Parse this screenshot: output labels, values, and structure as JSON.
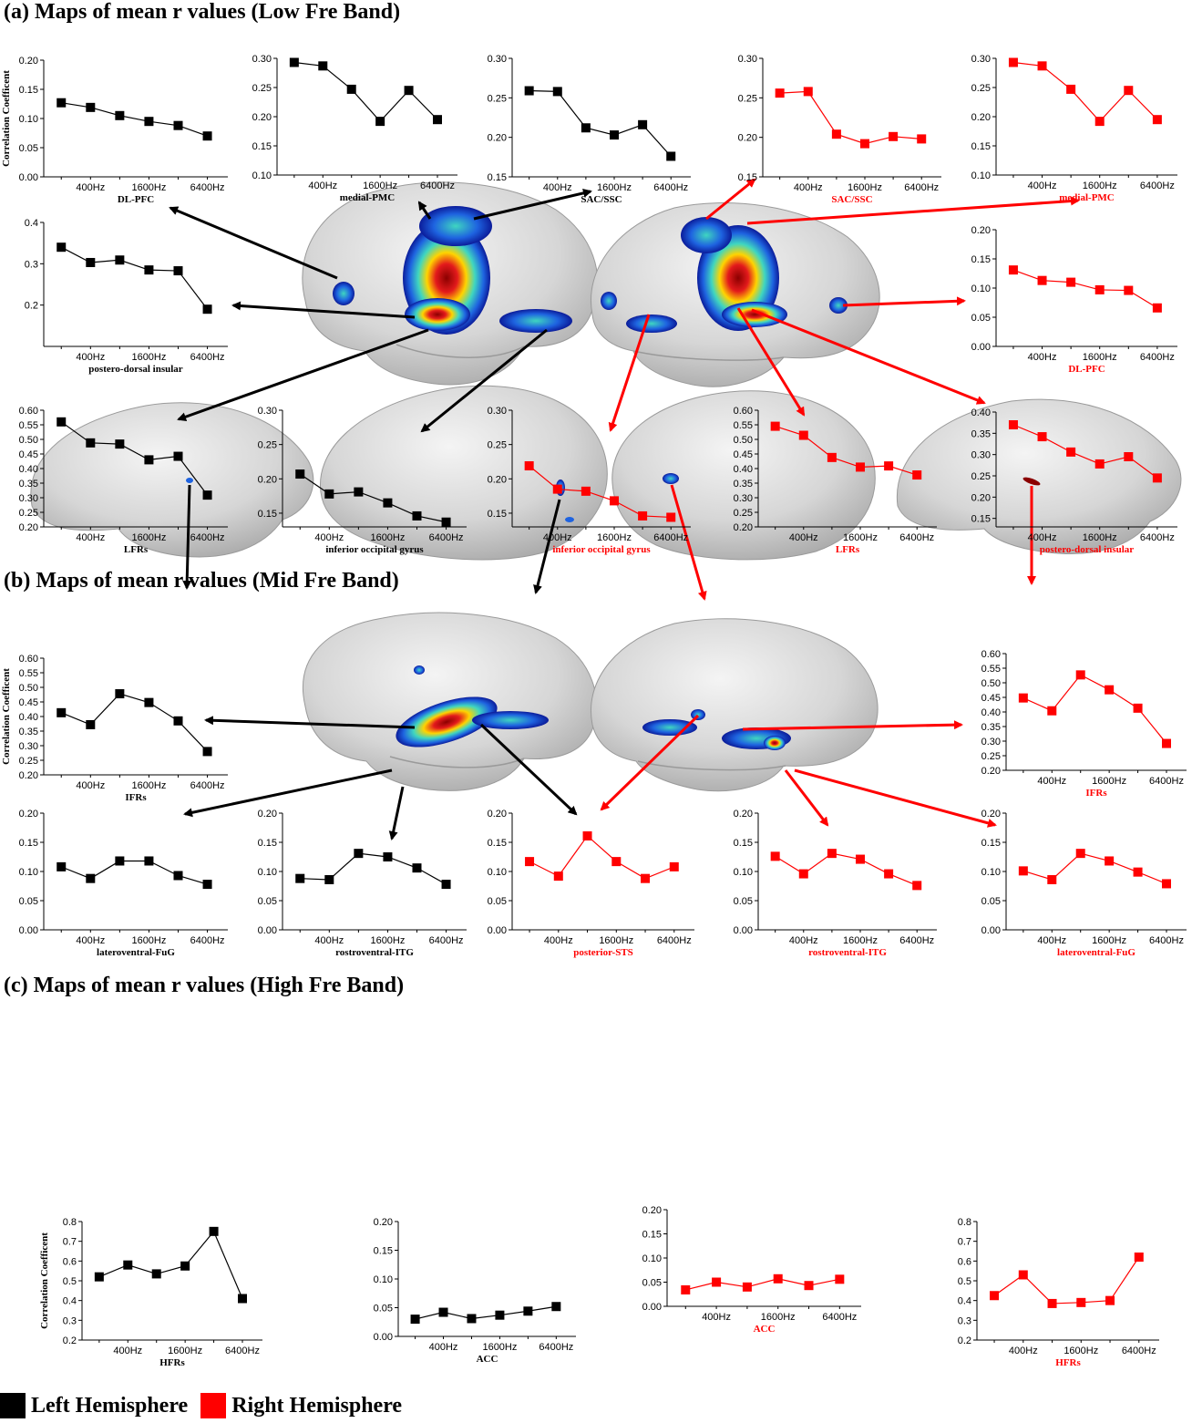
{
  "sections": {
    "a": "(a)  Maps of mean r values (Low Fre Band)",
    "b": "(b)  Maps of mean r values (Mid Fre Band)",
    "c": "(c)  Maps of mean r values (High Fre Band)"
  },
  "legend": {
    "left": "Left Hemisphere",
    "right": "Right Hemisphere",
    "left_color": "#000000",
    "right_color": "#ff0000"
  },
  "colors": {
    "left": "#000000",
    "right": "#ff0000"
  },
  "chart_data": [
    {
      "id": "a-l-dlpfc",
      "type": "line",
      "hemisphere": "left",
      "title": "DL-PFC",
      "ylabel": "Correlation Coefficent",
      "ylim": [
        0,
        0.2
      ],
      "yticks": [
        "0.00",
        "0.05",
        "0.10",
        "0.15",
        "0.20"
      ],
      "xticks": [
        "400Hz",
        "1600Hz",
        "6400Hz"
      ],
      "values": [
        0.127,
        0.119,
        0.105,
        0.095,
        0.088,
        0.07
      ]
    },
    {
      "id": "a-l-mpmc",
      "type": "line",
      "hemisphere": "left",
      "title": "medial-PMC",
      "ylabel": "",
      "ylim": [
        0.1,
        0.3
      ],
      "yticks": [
        "0.10",
        "0.15",
        "0.20",
        "0.25",
        "0.30"
      ],
      "xticks": [
        "400Hz",
        "1600Hz",
        "6400Hz"
      ],
      "values": [
        0.293,
        0.287,
        0.247,
        0.192,
        0.245,
        0.195
      ]
    },
    {
      "id": "a-l-sac",
      "type": "line",
      "hemisphere": "left",
      "title": "SAC/SSC",
      "ylabel": "",
      "ylim": [
        0.15,
        0.3
      ],
      "yticks": [
        "0.15",
        "0.20",
        "0.25",
        "0.30"
      ],
      "xticks": [
        "400Hz",
        "1600Hz",
        "6400Hz"
      ],
      "values": [
        0.259,
        0.258,
        0.212,
        0.203,
        0.216,
        0.176
      ]
    },
    {
      "id": "a-r-sac",
      "type": "line",
      "hemisphere": "right",
      "title": "SAC/SSC",
      "ylabel": "",
      "ylim": [
        0.15,
        0.3
      ],
      "yticks": [
        "0.15",
        "0.20",
        "0.25",
        "0.30"
      ],
      "xticks": [
        "400Hz",
        "1600Hz",
        "6400Hz"
      ],
      "values": [
        0.256,
        0.258,
        0.204,
        0.192,
        0.201,
        0.198
      ]
    },
    {
      "id": "a-r-mpmc",
      "type": "line",
      "hemisphere": "right",
      "title": "medial-PMC",
      "ylabel": "",
      "ylim": [
        0.1,
        0.3
      ],
      "yticks": [
        "0.10",
        "0.15",
        "0.20",
        "0.25",
        "0.30"
      ],
      "xticks": [
        "400Hz",
        "1600Hz",
        "6400Hz"
      ],
      "values": [
        0.293,
        0.287,
        0.247,
        0.192,
        0.245,
        0.195
      ]
    },
    {
      "id": "a-l-pdi",
      "type": "line",
      "hemisphere": "left",
      "title": "postero-dorsal insular",
      "ylabel": "",
      "ylim": [
        0.1,
        0.4
      ],
      "yticks": [
        "0.2",
        "0.3",
        "0.4"
      ],
      "xticks": [
        "400Hz",
        "1600Hz",
        "6400Hz"
      ],
      "values": [
        0.34,
        0.303,
        0.309,
        0.285,
        0.283,
        0.19
      ]
    },
    {
      "id": "a-r-dlpfc",
      "type": "line",
      "hemisphere": "right",
      "title": "DL-PFC",
      "ylabel": "",
      "ylim": [
        0,
        0.2
      ],
      "yticks": [
        "0.00",
        "0.05",
        "0.10",
        "0.15",
        "0.20"
      ],
      "xticks": [
        "400Hz",
        "1600Hz",
        "6400Hz"
      ],
      "values": [
        0.131,
        0.113,
        0.11,
        0.097,
        0.096,
        0.066
      ]
    },
    {
      "id": "a-l-lfrs",
      "type": "line",
      "hemisphere": "left",
      "title": "LFRs",
      "ylabel": "",
      "ylim": [
        0.2,
        0.6
      ],
      "yticks": [
        "0.20",
        "0.25",
        "0.30",
        "0.35",
        "0.40",
        "0.45",
        "0.50",
        "0.55",
        "0.60"
      ],
      "xticks": [
        "400Hz",
        "1600Hz",
        "6400Hz"
      ],
      "values": [
        0.56,
        0.488,
        0.484,
        0.43,
        0.442,
        0.309
      ]
    },
    {
      "id": "a-l-iog",
      "type": "line",
      "hemisphere": "left",
      "title": "inferior occipital gyrus",
      "ylabel": "",
      "ylim": [
        0.13,
        0.3
      ],
      "yticks": [
        "0.15",
        "0.20",
        "0.25",
        "0.30"
      ],
      "xticks": [
        "400Hz",
        "1600Hz",
        "6400Hz"
      ],
      "values": [
        0.207,
        0.178,
        0.181,
        0.165,
        0.146,
        0.137
      ]
    },
    {
      "id": "a-r-iog",
      "type": "line",
      "hemisphere": "right",
      "title": "inferior occipital gyrus",
      "ylabel": "",
      "ylim": [
        0.13,
        0.3
      ],
      "yticks": [
        "0.15",
        "0.20",
        "0.25",
        "0.30"
      ],
      "xticks": [
        "400Hz",
        "1600Hz",
        "6400Hz"
      ],
      "values": [
        0.219,
        0.185,
        0.182,
        0.168,
        0.146,
        0.144
      ]
    },
    {
      "id": "a-r-lfrs",
      "type": "line",
      "hemisphere": "right",
      "title": "LFRs",
      "ylabel": "",
      "ylim": [
        0.2,
        0.6
      ],
      "yticks": [
        "0.20",
        "0.25",
        "0.30",
        "0.35",
        "0.40",
        "0.45",
        "0.50",
        "0.55",
        "0.60"
      ],
      "xticks": [
        "400Hz",
        "1600Hz",
        "6400Hz"
      ],
      "values": [
        0.545,
        0.514,
        0.438,
        0.405,
        0.409,
        0.378
      ]
    },
    {
      "id": "a-r-pdi",
      "type": "line",
      "hemisphere": "right",
      "title": "postero-dorsal insular",
      "ylabel": "",
      "ylim": [
        0.13,
        0.4
      ],
      "yticks": [
        "0.15",
        "0.20",
        "0.25",
        "0.30",
        "0.35",
        "0.40"
      ],
      "xticks": [
        "400Hz",
        "1600Hz",
        "6400Hz"
      ],
      "values": [
        0.37,
        0.342,
        0.306,
        0.278,
        0.295,
        0.245
      ]
    },
    {
      "id": "b-l-ifrs",
      "type": "line",
      "hemisphere": "left",
      "title": "IFRs",
      "ylabel": "Correlation Coefficent",
      "ylim": [
        0.2,
        0.6
      ],
      "yticks": [
        "0.20",
        "0.25",
        "0.30",
        "0.35",
        "0.40",
        "0.45",
        "0.50",
        "0.55",
        "0.60"
      ],
      "xticks": [
        "400Hz",
        "1600Hz",
        "6400Hz"
      ],
      "values": [
        0.413,
        0.372,
        0.478,
        0.448,
        0.385,
        0.28
      ]
    },
    {
      "id": "b-r-ifrs",
      "type": "line",
      "hemisphere": "right",
      "title": "IFRs",
      "ylabel": "",
      "ylim": [
        0.2,
        0.6
      ],
      "yticks": [
        "0.20",
        "0.25",
        "0.30",
        "0.35",
        "0.40",
        "0.45",
        "0.50",
        "0.55",
        "0.60"
      ],
      "xticks": [
        "400Hz",
        "1600Hz",
        "6400Hz"
      ],
      "values": [
        0.448,
        0.404,
        0.527,
        0.476,
        0.413,
        0.292
      ]
    },
    {
      "id": "b-l-fug",
      "type": "line",
      "hemisphere": "left",
      "title": "lateroventral-FuG",
      "ylabel": "",
      "ylim": [
        0,
        0.2
      ],
      "yticks": [
        "0.00",
        "0.05",
        "0.10",
        "0.15",
        "0.20"
      ],
      "xticks": [
        "400Hz",
        "1600Hz",
        "6400Hz"
      ],
      "values": [
        0.108,
        0.088,
        0.118,
        0.118,
        0.093,
        0.078
      ]
    },
    {
      "id": "b-l-itg",
      "type": "line",
      "hemisphere": "left",
      "title": "rostroventral-ITG",
      "ylabel": "",
      "ylim": [
        0,
        0.2
      ],
      "yticks": [
        "0.00",
        "0.05",
        "0.10",
        "0.15",
        "0.20"
      ],
      "xticks": [
        "400Hz",
        "1600Hz",
        "6400Hz"
      ],
      "values": [
        0.088,
        0.086,
        0.131,
        0.125,
        0.106,
        0.078
      ]
    },
    {
      "id": "b-r-sts",
      "type": "line",
      "hemisphere": "right",
      "title": "posterior-STS",
      "ylabel": "",
      "ylim": [
        0,
        0.2
      ],
      "yticks": [
        "0.00",
        "0.05",
        "0.10",
        "0.15",
        "0.20"
      ],
      "xticks": [
        "400Hz",
        "1600Hz",
        "6400Hz"
      ],
      "values": [
        0.117,
        0.092,
        0.161,
        0.117,
        0.088,
        0.108
      ]
    },
    {
      "id": "b-r-itg",
      "type": "line",
      "hemisphere": "right",
      "title": "rostroventral-ITG",
      "ylabel": "",
      "ylim": [
        0,
        0.2
      ],
      "yticks": [
        "0.00",
        "0.05",
        "0.10",
        "0.15",
        "0.20"
      ],
      "xticks": [
        "400Hz",
        "1600Hz",
        "6400Hz"
      ],
      "values": [
        0.126,
        0.096,
        0.131,
        0.121,
        0.096,
        0.076
      ]
    },
    {
      "id": "b-r-fug",
      "type": "line",
      "hemisphere": "right",
      "title": "lateroventral-FuG",
      "ylabel": "",
      "ylim": [
        0,
        0.2
      ],
      "yticks": [
        "0.00",
        "0.05",
        "0.10",
        "0.15",
        "0.20"
      ],
      "xticks": [
        "400Hz",
        "1600Hz",
        "6400Hz"
      ],
      "values": [
        0.101,
        0.086,
        0.131,
        0.118,
        0.099,
        0.079
      ]
    },
    {
      "id": "c-l-hfrs",
      "type": "line",
      "hemisphere": "left",
      "title": "HFRs",
      "ylabel": "Correlation Coefficent",
      "ylim": [
        0.2,
        0.8
      ],
      "yticks": [
        "0.2",
        "0.3",
        "0.4",
        "0.5",
        "0.6",
        "0.7",
        "0.8"
      ],
      "xticks": [
        "400Hz",
        "1600Hz",
        "6400Hz"
      ],
      "values": [
        0.52,
        0.58,
        0.535,
        0.575,
        0.75,
        0.41
      ]
    },
    {
      "id": "c-l-acc",
      "type": "line",
      "hemisphere": "left",
      "title": "ACC",
      "ylabel": "",
      "ylim": [
        0,
        0.2
      ],
      "yticks": [
        "0.00",
        "0.05",
        "0.10",
        "0.15",
        "0.20"
      ],
      "xticks": [
        "400Hz",
        "1600Hz",
        "6400Hz"
      ],
      "values": [
        0.03,
        0.042,
        0.031,
        0.037,
        0.044,
        0.052
      ]
    },
    {
      "id": "c-r-acc",
      "type": "line",
      "hemisphere": "right",
      "title": "ACC",
      "ylabel": "",
      "ylim": [
        0,
        0.2
      ],
      "yticks": [
        "0.00",
        "0.05",
        "0.10",
        "0.15",
        "0.20"
      ],
      "xticks": [
        "400Hz",
        "1600Hz",
        "6400Hz"
      ],
      "values": [
        0.034,
        0.05,
        0.04,
        0.057,
        0.043,
        0.056
      ]
    },
    {
      "id": "c-r-hfrs",
      "type": "line",
      "hemisphere": "right",
      "title": "HFRs",
      "ylabel": "",
      "ylim": [
        0.2,
        0.8
      ],
      "yticks": [
        "0.2",
        "0.3",
        "0.4",
        "0.5",
        "0.6",
        "0.7",
        "0.8"
      ],
      "xticks": [
        "400Hz",
        "1600Hz",
        "6400Hz"
      ],
      "values": [
        0.425,
        0.53,
        0.385,
        0.39,
        0.4,
        0.62
      ]
    }
  ]
}
